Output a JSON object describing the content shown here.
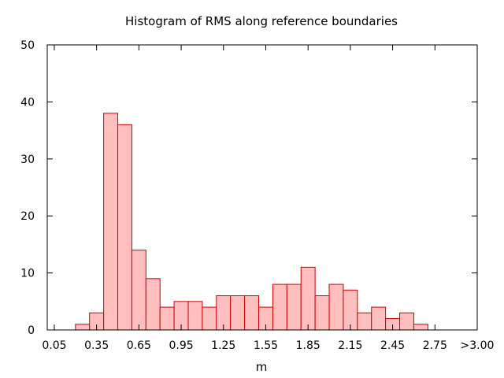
{
  "chart_data": {
    "type": "bar",
    "title": "Histogram of RMS along reference boundaries",
    "xlabel": "m",
    "ylabel": "",
    "bin_width": 0.1,
    "x_ticks": [
      "0.05",
      "0.35",
      "0.65",
      "0.95",
      "1.25",
      "1.55",
      "1.85",
      "2.15",
      "2.45",
      "2.75",
      ">3.00"
    ],
    "y_ticks": [
      "0",
      "10",
      "20",
      "30",
      "40",
      "50"
    ],
    "ylim": [
      0,
      50
    ],
    "xlim": [
      0.0,
      3.05
    ],
    "bin_centers": [
      0.25,
      0.35,
      0.45,
      0.55,
      0.65,
      0.75,
      0.85,
      0.95,
      1.05,
      1.15,
      1.25,
      1.35,
      1.45,
      1.55,
      1.65,
      1.75,
      1.85,
      1.95,
      2.05,
      2.15,
      2.25,
      2.35,
      2.45,
      2.55,
      2.65
    ],
    "values": [
      1,
      3,
      38,
      36,
      14,
      9,
      4,
      5,
      5,
      4,
      6,
      6,
      6,
      4,
      8,
      8,
      11,
      6,
      8,
      7,
      3,
      4,
      2,
      3,
      1
    ],
    "bar_fill": "#ffbfbf",
    "bar_stroke": "#cc0000",
    "grid": false
  }
}
